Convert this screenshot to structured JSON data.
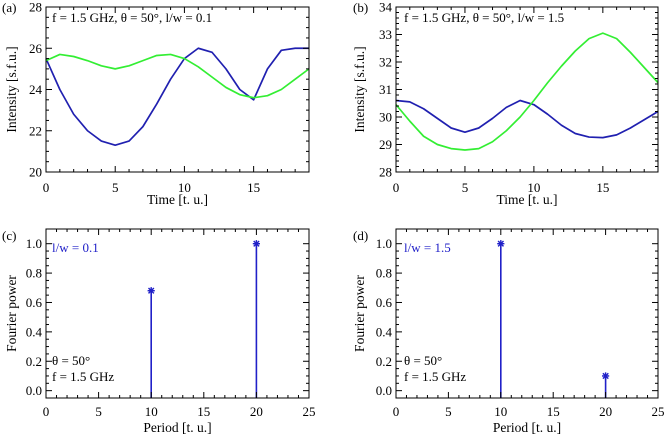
{
  "chart_data": [
    {
      "panel_label": "(a)",
      "type": "line",
      "annotation": "f = 1.5 GHz,  θ = 50°,  l/w = 0.1",
      "xlabel": "Time [t. u.]",
      "ylabel": "Intensity [s.f.u.]",
      "xlim": [
        0,
        19
      ],
      "ylim": [
        20,
        28
      ],
      "xticks": [
        "0",
        "5",
        "10",
        "15"
      ],
      "yticks": [
        "20",
        "22",
        "24",
        "26",
        "28"
      ],
      "series": [
        {
          "color": "#2020b0",
          "x": [
            0,
            1,
            2,
            3,
            4,
            5,
            6,
            7,
            8,
            9,
            10,
            11,
            12,
            13,
            14,
            15,
            16,
            17,
            18,
            19
          ],
          "y": [
            25.5,
            24.0,
            22.8,
            22.0,
            21.5,
            21.3,
            21.5,
            22.2,
            23.3,
            24.5,
            25.5,
            26.0,
            25.8,
            25.0,
            24.0,
            23.5,
            25.0,
            25.9,
            26.0,
            26.0
          ]
        },
        {
          "color": "#33ee33",
          "x": [
            0,
            1,
            2,
            3,
            4,
            5,
            6,
            7,
            8,
            9,
            10,
            11,
            12,
            13,
            14,
            15,
            16,
            17,
            18,
            19
          ],
          "y": [
            25.4,
            25.7,
            25.6,
            25.4,
            25.15,
            25.0,
            25.15,
            25.4,
            25.65,
            25.7,
            25.5,
            25.1,
            24.6,
            24.1,
            23.75,
            23.6,
            23.7,
            24.0,
            24.5,
            25.0
          ]
        }
      ]
    },
    {
      "panel_label": "(b)",
      "type": "line",
      "annotation": "f = 1.5 GHz,  θ = 50°,  l/w = 1.5",
      "xlabel": "Time [t. u.]",
      "ylabel": "Intensity [s.f.u.]",
      "xlim": [
        0,
        19
      ],
      "ylim": [
        28,
        34
      ],
      "xticks": [
        "0",
        "5",
        "10",
        "15"
      ],
      "yticks": [
        "28",
        "29",
        "30",
        "31",
        "32",
        "33",
        "34"
      ],
      "series": [
        {
          "color": "#2020b0",
          "x": [
            0,
            1,
            2,
            3,
            4,
            5,
            6,
            7,
            8,
            9,
            10,
            11,
            12,
            13,
            14,
            15,
            16,
            17,
            18,
            19
          ],
          "y": [
            30.6,
            30.55,
            30.3,
            29.95,
            29.6,
            29.45,
            29.6,
            29.95,
            30.35,
            30.6,
            30.45,
            30.1,
            29.7,
            29.4,
            29.27,
            29.25,
            29.35,
            29.6,
            29.9,
            30.2
          ]
        },
        {
          "color": "#33ee33",
          "x": [
            0,
            1,
            2,
            3,
            4,
            5,
            6,
            7,
            8,
            9,
            10,
            11,
            12,
            13,
            14,
            15,
            16,
            17,
            18,
            19
          ],
          "y": [
            30.45,
            29.85,
            29.3,
            29.0,
            28.85,
            28.8,
            28.85,
            29.1,
            29.5,
            30.0,
            30.6,
            31.25,
            31.85,
            32.4,
            32.85,
            33.05,
            32.85,
            32.35,
            31.8,
            31.25
          ]
        }
      ]
    },
    {
      "panel_label": "(c)",
      "type": "stem",
      "legend_label": "l/w = 0.1",
      "legend_color": "#2020c8",
      "annotation_lines": [
        "θ = 50°",
        "f = 1.5 GHz"
      ],
      "xlabel": "Period [t. u.]",
      "ylabel": "Fourier power",
      "xlim": [
        0,
        25
      ],
      "ylim": [
        -0.05,
        1.1
      ],
      "xticks": [
        "0",
        "5",
        "10",
        "15",
        "20",
        "25"
      ],
      "yticks": [
        "0.0",
        "0.2",
        "0.4",
        "0.6",
        "0.8",
        "1.0"
      ],
      "x": [
        10,
        20
      ],
      "y": [
        0.68,
        1.0
      ],
      "color": "#2020c8"
    },
    {
      "panel_label": "(d)",
      "type": "stem",
      "legend_label": "l/w = 1.5",
      "legend_color": "#2020c8",
      "annotation_lines": [
        "θ = 50°",
        "f = 1.5 GHz"
      ],
      "xlabel": "Period [t. u.]",
      "ylabel": "Fourier power",
      "xlim": [
        0,
        25
      ],
      "ylim": [
        -0.05,
        1.1
      ],
      "xticks": [
        "0",
        "5",
        "10",
        "15",
        "20",
        "25"
      ],
      "yticks": [
        "0.0",
        "0.2",
        "0.4",
        "0.6",
        "0.8",
        "1.0"
      ],
      "x": [
        10,
        20
      ],
      "y": [
        1.0,
        0.1
      ],
      "color": "#2020c8"
    }
  ]
}
